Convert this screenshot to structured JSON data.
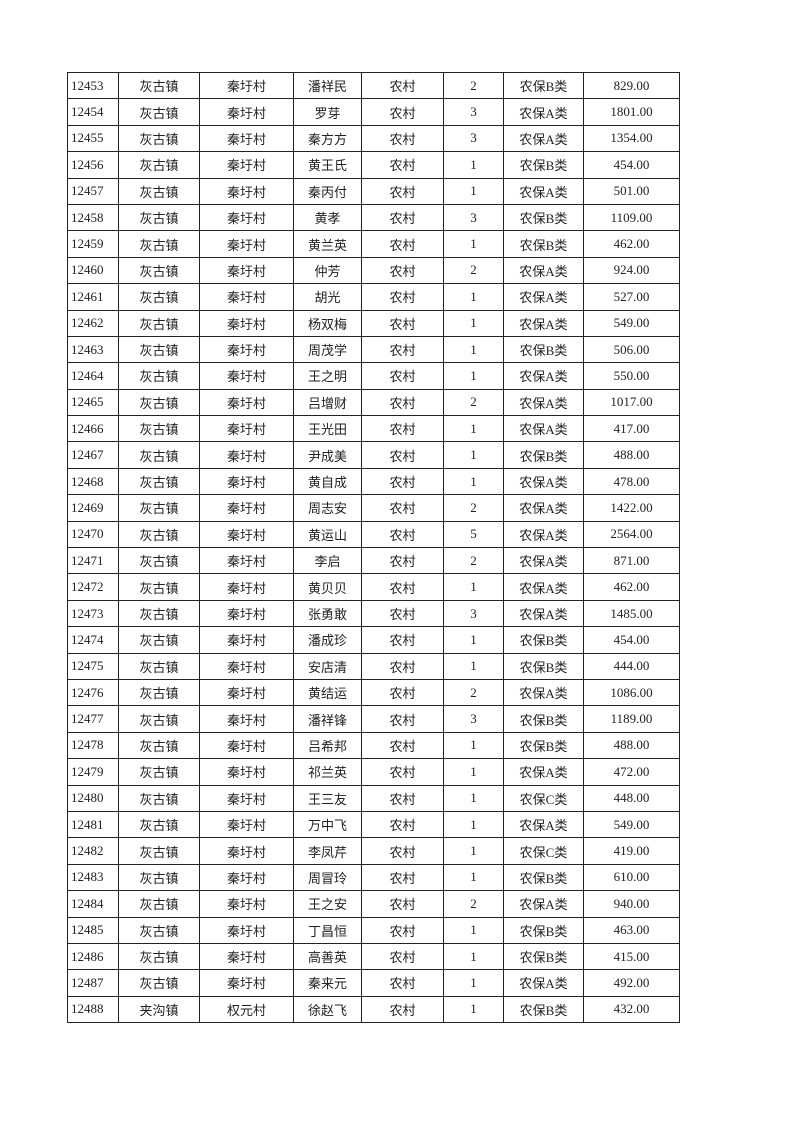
{
  "table": {
    "rows": [
      [
        "12453",
        "灰古镇",
        "秦圩村",
        "潘祥民",
        "农村",
        "2",
        "农保B类",
        "829.00"
      ],
      [
        "12454",
        "灰古镇",
        "秦圩村",
        "罗芽",
        "农村",
        "3",
        "农保A类",
        "1801.00"
      ],
      [
        "12455",
        "灰古镇",
        "秦圩村",
        "秦方方",
        "农村",
        "3",
        "农保A类",
        "1354.00"
      ],
      [
        "12456",
        "灰古镇",
        "秦圩村",
        "黄王氏",
        "农村",
        "1",
        "农保B类",
        "454.00"
      ],
      [
        "12457",
        "灰古镇",
        "秦圩村",
        "秦丙付",
        "农村",
        "1",
        "农保A类",
        "501.00"
      ],
      [
        "12458",
        "灰古镇",
        "秦圩村",
        "黄孝",
        "农村",
        "3",
        "农保B类",
        "1109.00"
      ],
      [
        "12459",
        "灰古镇",
        "秦圩村",
        "黄兰英",
        "农村",
        "1",
        "农保B类",
        "462.00"
      ],
      [
        "12460",
        "灰古镇",
        "秦圩村",
        "仲芳",
        "农村",
        "2",
        "农保A类",
        "924.00"
      ],
      [
        "12461",
        "灰古镇",
        "秦圩村",
        "胡光",
        "农村",
        "1",
        "农保A类",
        "527.00"
      ],
      [
        "12462",
        "灰古镇",
        "秦圩村",
        "杨双梅",
        "农村",
        "1",
        "农保A类",
        "549.00"
      ],
      [
        "12463",
        "灰古镇",
        "秦圩村",
        "周茂学",
        "农村",
        "1",
        "农保B类",
        "506.00"
      ],
      [
        "12464",
        "灰古镇",
        "秦圩村",
        "王之明",
        "农村",
        "1",
        "农保A类",
        "550.00"
      ],
      [
        "12465",
        "灰古镇",
        "秦圩村",
        "吕增财",
        "农村",
        "2",
        "农保A类",
        "1017.00"
      ],
      [
        "12466",
        "灰古镇",
        "秦圩村",
        "王光田",
        "农村",
        "1",
        "农保A类",
        "417.00"
      ],
      [
        "12467",
        "灰古镇",
        "秦圩村",
        "尹成美",
        "农村",
        "1",
        "农保B类",
        "488.00"
      ],
      [
        "12468",
        "灰古镇",
        "秦圩村",
        "黄自成",
        "农村",
        "1",
        "农保A类",
        "478.00"
      ],
      [
        "12469",
        "灰古镇",
        "秦圩村",
        "周志安",
        "农村",
        "2",
        "农保A类",
        "1422.00"
      ],
      [
        "12470",
        "灰古镇",
        "秦圩村",
        "黄运山",
        "农村",
        "5",
        "农保A类",
        "2564.00"
      ],
      [
        "12471",
        "灰古镇",
        "秦圩村",
        "李启",
        "农村",
        "2",
        "农保A类",
        "871.00"
      ],
      [
        "12472",
        "灰古镇",
        "秦圩村",
        "黄贝贝",
        "农村",
        "1",
        "农保A类",
        "462.00"
      ],
      [
        "12473",
        "灰古镇",
        "秦圩村",
        "张勇敢",
        "农村",
        "3",
        "农保A类",
        "1485.00"
      ],
      [
        "12474",
        "灰古镇",
        "秦圩村",
        "潘成珍",
        "农村",
        "1",
        "农保B类",
        "454.00"
      ],
      [
        "12475",
        "灰古镇",
        "秦圩村",
        "安店清",
        "农村",
        "1",
        "农保B类",
        "444.00"
      ],
      [
        "12476",
        "灰古镇",
        "秦圩村",
        "黄结运",
        "农村",
        "2",
        "农保A类",
        "1086.00"
      ],
      [
        "12477",
        "灰古镇",
        "秦圩村",
        "潘祥锋",
        "农村",
        "3",
        "农保B类",
        "1189.00"
      ],
      [
        "12478",
        "灰古镇",
        "秦圩村",
        "吕希邦",
        "农村",
        "1",
        "农保B类",
        "488.00"
      ],
      [
        "12479",
        "灰古镇",
        "秦圩村",
        "祁兰英",
        "农村",
        "1",
        "农保A类",
        "472.00"
      ],
      [
        "12480",
        "灰古镇",
        "秦圩村",
        "王三友",
        "农村",
        "1",
        "农保C类",
        "448.00"
      ],
      [
        "12481",
        "灰古镇",
        "秦圩村",
        "万中飞",
        "农村",
        "1",
        "农保A类",
        "549.00"
      ],
      [
        "12482",
        "灰古镇",
        "秦圩村",
        "李凤芹",
        "农村",
        "1",
        "农保C类",
        "419.00"
      ],
      [
        "12483",
        "灰古镇",
        "秦圩村",
        "周冒玲",
        "农村",
        "1",
        "农保B类",
        "610.00"
      ],
      [
        "12484",
        "灰古镇",
        "秦圩村",
        "王之安",
        "农村",
        "2",
        "农保A类",
        "940.00"
      ],
      [
        "12485",
        "灰古镇",
        "秦圩村",
        "丁昌恒",
        "农村",
        "1",
        "农保B类",
        "463.00"
      ],
      [
        "12486",
        "灰古镇",
        "秦圩村",
        "高善英",
        "农村",
        "1",
        "农保B类",
        "415.00"
      ],
      [
        "12487",
        "灰古镇",
        "秦圩村",
        "秦来元",
        "农村",
        "1",
        "农保A类",
        "492.00"
      ],
      [
        "12488",
        "夹沟镇",
        "权元村",
        "徐赵飞",
        "农村",
        "1",
        "农保B类",
        "432.00"
      ]
    ]
  }
}
